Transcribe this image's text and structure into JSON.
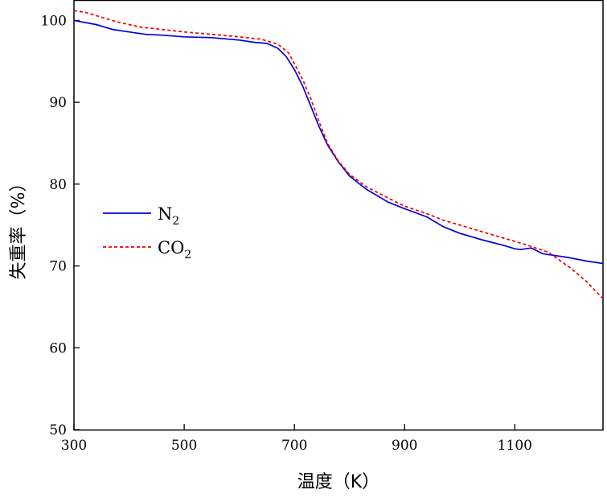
{
  "chart_data": {
    "type": "line",
    "title": "",
    "xlabel": "温度（K）",
    "ylabel": "失重率（%）",
    "xlim": [
      300,
      1260
    ],
    "ylim": [
      50,
      102.5
    ],
    "xticks": [
      300,
      500,
      700,
      900,
      1100
    ],
    "yticks": [
      50,
      60,
      70,
      80,
      90,
      100
    ],
    "grid": false,
    "legend_position": "center-left",
    "series": [
      {
        "name": "N2",
        "label_base": "N",
        "label_sub": "2",
        "color": "#0000dd",
        "style": "solid",
        "x": [
          300,
          340,
          370,
          400,
          430,
          460,
          500,
          550,
          600,
          630,
          650,
          670,
          685,
          700,
          715,
          730,
          745,
          760,
          780,
          800,
          830,
          870,
          900,
          940,
          970,
          1000,
          1040,
          1080,
          1100,
          1110,
          1130,
          1150,
          1200,
          1230,
          1260
        ],
        "y": [
          100.0,
          99.5,
          98.9,
          98.6,
          98.3,
          98.2,
          98.0,
          97.9,
          97.6,
          97.3,
          97.2,
          96.6,
          95.6,
          94.0,
          92.0,
          89.5,
          87.0,
          84.8,
          82.7,
          81.0,
          79.4,
          77.8,
          77.0,
          76.0,
          74.8,
          74.0,
          73.2,
          72.5,
          72.1,
          72.0,
          72.2,
          71.5,
          71.0,
          70.6,
          70.3
        ]
      },
      {
        "name": "CO2",
        "label_base": "CO",
        "label_sub": "2",
        "color": "#ee0000",
        "style": "dashed",
        "x": [
          300,
          320,
          350,
          380,
          420,
          460,
          500,
          550,
          600,
          640,
          670,
          690,
          700,
          715,
          730,
          745,
          760,
          780,
          800,
          830,
          870,
          900,
          940,
          970,
          1000,
          1040,
          1080,
          1120,
          1160,
          1200,
          1230,
          1260
        ],
        "y": [
          101.2,
          101.0,
          100.4,
          99.8,
          99.2,
          98.9,
          98.6,
          98.3,
          98.0,
          97.7,
          97.1,
          96.0,
          94.7,
          92.8,
          90.4,
          87.6,
          85.0,
          82.8,
          81.2,
          79.7,
          78.3,
          77.3,
          76.4,
          75.6,
          75.0,
          74.2,
          73.4,
          72.6,
          71.7,
          69.8,
          68.1,
          66.0
        ]
      }
    ]
  }
}
